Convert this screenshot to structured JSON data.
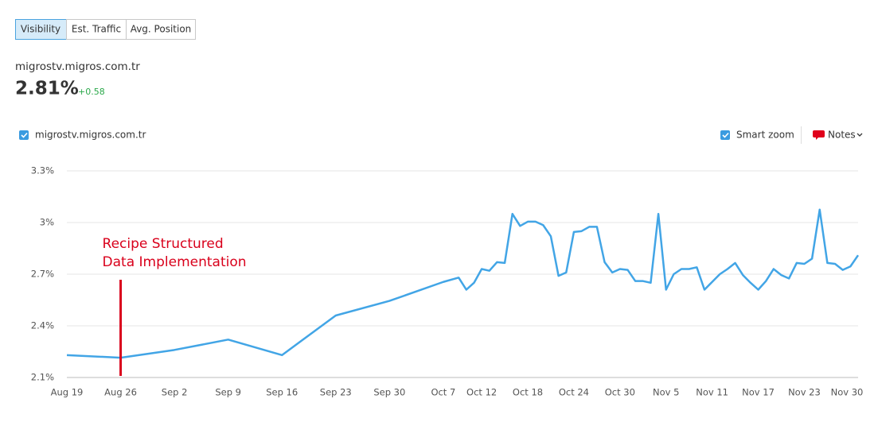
{
  "tabs": [
    "Visibility",
    "Est. Traffic",
    "Avg. Position"
  ],
  "domain": "migrostv.migros.com.tr",
  "metric": "2.81%",
  "change": "+0.58",
  "controls": {
    "smart_zoom": "Smart zoom",
    "notes": "Notes"
  },
  "chart_data": {
    "type": "line",
    "x": [
      "Aug 19",
      "Aug 26",
      "Sep 2",
      "Sep 9",
      "Sep 16",
      "Sep 23",
      "Sep 30",
      "Oct 7",
      "Oct 9",
      "Oct 10",
      "Oct 11",
      "Oct 12",
      "Oct 13",
      "Oct 14",
      "Oct 15",
      "Oct 16",
      "Oct 17",
      "Oct 18",
      "Oct 19",
      "Oct 20",
      "Oct 21",
      "Oct 22",
      "Oct 23",
      "Oct 24",
      "Oct 25",
      "Oct 26",
      "Oct 27",
      "Oct 28",
      "Oct 29",
      "Oct 30",
      "Oct 31",
      "Nov 1",
      "Nov 2",
      "Nov 3",
      "Nov 4",
      "Nov 5",
      "Nov 6",
      "Nov 7",
      "Nov 8",
      "Nov 9",
      "Nov 10",
      "Nov 11",
      "Nov 12",
      "Nov 13",
      "Nov 14",
      "Nov 15",
      "Nov 16",
      "Nov 17",
      "Nov 18",
      "Nov 19",
      "Nov 20",
      "Nov 21",
      "Nov 22",
      "Nov 23",
      "Nov 24",
      "Nov 25",
      "Nov 26",
      "Nov 27",
      "Nov 28",
      "Nov 29",
      "Nov 30"
    ],
    "series": [
      {
        "name": "migrostv.migros.com.tr",
        "color": "#42a5e6",
        "values": [
          2.23,
          2.215,
          2.26,
          2.32,
          2.23,
          2.46,
          2.545,
          2.655,
          2.68,
          2.61,
          2.65,
          2.73,
          2.72,
          2.77,
          2.765,
          3.05,
          2.98,
          3.005,
          3.005,
          2.985,
          2.92,
          2.69,
          2.71,
          2.945,
          2.95,
          2.975,
          2.975,
          2.77,
          2.71,
          2.73,
          2.725,
          2.66,
          2.66,
          2.65,
          3.05,
          2.61,
          2.7,
          2.73,
          2.73,
          2.74,
          2.61,
          2.655,
          2.7,
          2.73,
          2.765,
          2.695,
          2.65,
          2.61,
          2.66,
          2.73,
          2.695,
          2.675,
          2.765,
          2.76,
          2.79,
          3.075,
          2.765,
          2.76,
          2.725,
          2.745,
          2.81
        ]
      }
    ],
    "xlim": [
      "Aug 19",
      "Nov 30"
    ],
    "xticks": [
      "Aug 19",
      "Aug 26",
      "Sep 2",
      "Sep 9",
      "Sep 16",
      "Sep 23",
      "Sep 30",
      "Oct 7",
      "Oct 12",
      "Oct 18",
      "Oct 24",
      "Oct 30",
      "Nov 5",
      "Nov 11",
      "Nov 17",
      "Nov 23",
      "Nov 30"
    ],
    "ylim": [
      2.1,
      3.3
    ],
    "yticks": [
      {
        "value": 2.1,
        "label": "2.1%"
      },
      {
        "value": 2.4,
        "label": "2.4%"
      },
      {
        "value": 2.7,
        "label": "2.7%"
      },
      {
        "value": 3,
        "label": "3%"
      },
      {
        "value": 3.3,
        "label": "3.3%"
      }
    ],
    "grid": true,
    "annotation": {
      "x": "Aug 26",
      "text": [
        "Recipe Structured",
        "Data Implementation"
      ],
      "color": "#d9001b"
    }
  }
}
